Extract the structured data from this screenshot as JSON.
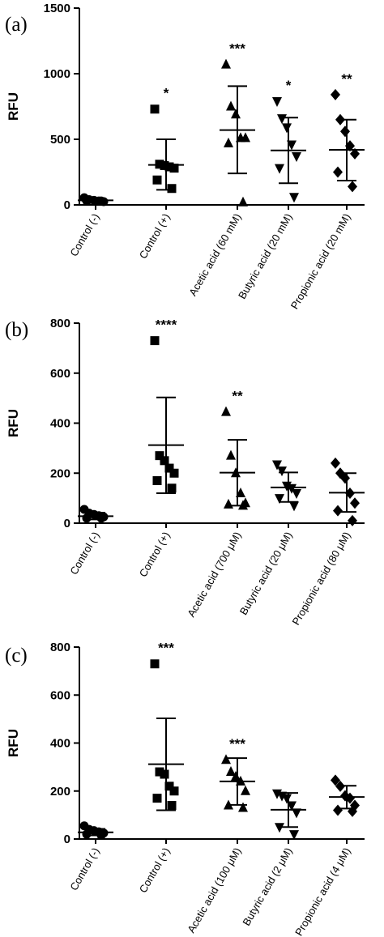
{
  "chart_data": [
    {
      "type": "scatter",
      "panel": "(a)",
      "ylabel": "RFU",
      "ylim": [
        0,
        1500
      ],
      "yticks": [
        0,
        500,
        1000,
        1500
      ],
      "categories": [
        "Control (-)",
        "Control (+)",
        "Acetic acid (60 mM)",
        "Butyric acid (20 mM)",
        "Propionic acid (20 mM)"
      ],
      "markers": [
        "circle",
        "square",
        "triangle-up",
        "triangle-down",
        "diamond"
      ],
      "points": [
        [
          55,
          40,
          35,
          30,
          25,
          30,
          30
        ],
        [
          730,
          310,
          300,
          290,
          280,
          190,
          125
        ],
        [
          1070,
          750,
          690,
          510,
          510,
          470,
          20
        ],
        [
          790,
          660,
          590,
          460,
          370,
          280,
          60
        ],
        [
          840,
          650,
          560,
          450,
          390,
          250,
          140
        ]
      ],
      "mean": [
        35,
        305,
        570,
        415,
        420
      ],
      "sd_low": [
        20,
        115,
        240,
        165,
        185
      ],
      "sd_high": [
        50,
        500,
        905,
        665,
        650
      ],
      "significance": [
        "",
        "*",
        "***",
        "*",
        "**"
      ]
    },
    {
      "type": "scatter",
      "panel": "(b)",
      "ylabel": "RFU",
      "ylim": [
        0,
        800
      ],
      "yticks": [
        0,
        200,
        400,
        600,
        800
      ],
      "categories": [
        "Control (-)",
        "Control (+)",
        "Acetic acid (700 μM)",
        "Butyric acid (20 μM)",
        "Propionic acid (80 μM)"
      ],
      "markers": [
        "circle",
        "square",
        "triangle-up",
        "triangle-down",
        "diamond"
      ],
      "points": [
        [
          55,
          40,
          35,
          30,
          25,
          20,
          20
        ],
        [
          730,
          270,
          250,
          220,
          200,
          170,
          140
        ],
        [
          445,
          270,
          200,
          120,
          80,
          75,
          70
        ],
        [
          235,
          210,
          150,
          140,
          120,
          100,
          70
        ],
        [
          240,
          200,
          180,
          120,
          80,
          50,
          10
        ]
      ],
      "mean": [
        28,
        312,
        202,
        143,
        122
      ],
      "sd_low": [
        15,
        120,
        70,
        85,
        45
      ],
      "sd_high": [
        42,
        503,
        333,
        203,
        200
      ],
      "significance": [
        "",
        "****",
        "**",
        "",
        ""
      ]
    },
    {
      "type": "scatter",
      "panel": "(c)",
      "ylabel": "RFU",
      "ylim": [
        0,
        800
      ],
      "yticks": [
        0,
        200,
        400,
        600,
        800
      ],
      "categories": [
        "Control (-)",
        "Control (+)",
        "Acetic acid (100 μM)",
        "Butyric acid (2 μM)",
        "Propionic acid (4 μM)"
      ],
      "markers": [
        "circle",
        "square",
        "triangle-up",
        "triangle-down",
        "diamond"
      ],
      "points": [
        [
          55,
          40,
          35,
          30,
          25,
          20,
          15
        ],
        [
          730,
          280,
          270,
          220,
          200,
          170,
          140
        ],
        [
          330,
          280,
          260,
          240,
          200,
          140,
          130
        ],
        [
          190,
          180,
          170,
          140,
          110,
          50,
          20
        ],
        [
          245,
          220,
          180,
          170,
          140,
          120,
          115
        ]
      ],
      "mean": [
        28,
        312,
        240,
        122,
        175
      ],
      "sd_low": [
        15,
        120,
        142,
        50,
        127
      ],
      "sd_high": [
        42,
        503,
        337,
        192,
        222
      ],
      "significance": [
        "",
        "***",
        "***",
        "",
        ""
      ]
    }
  ]
}
